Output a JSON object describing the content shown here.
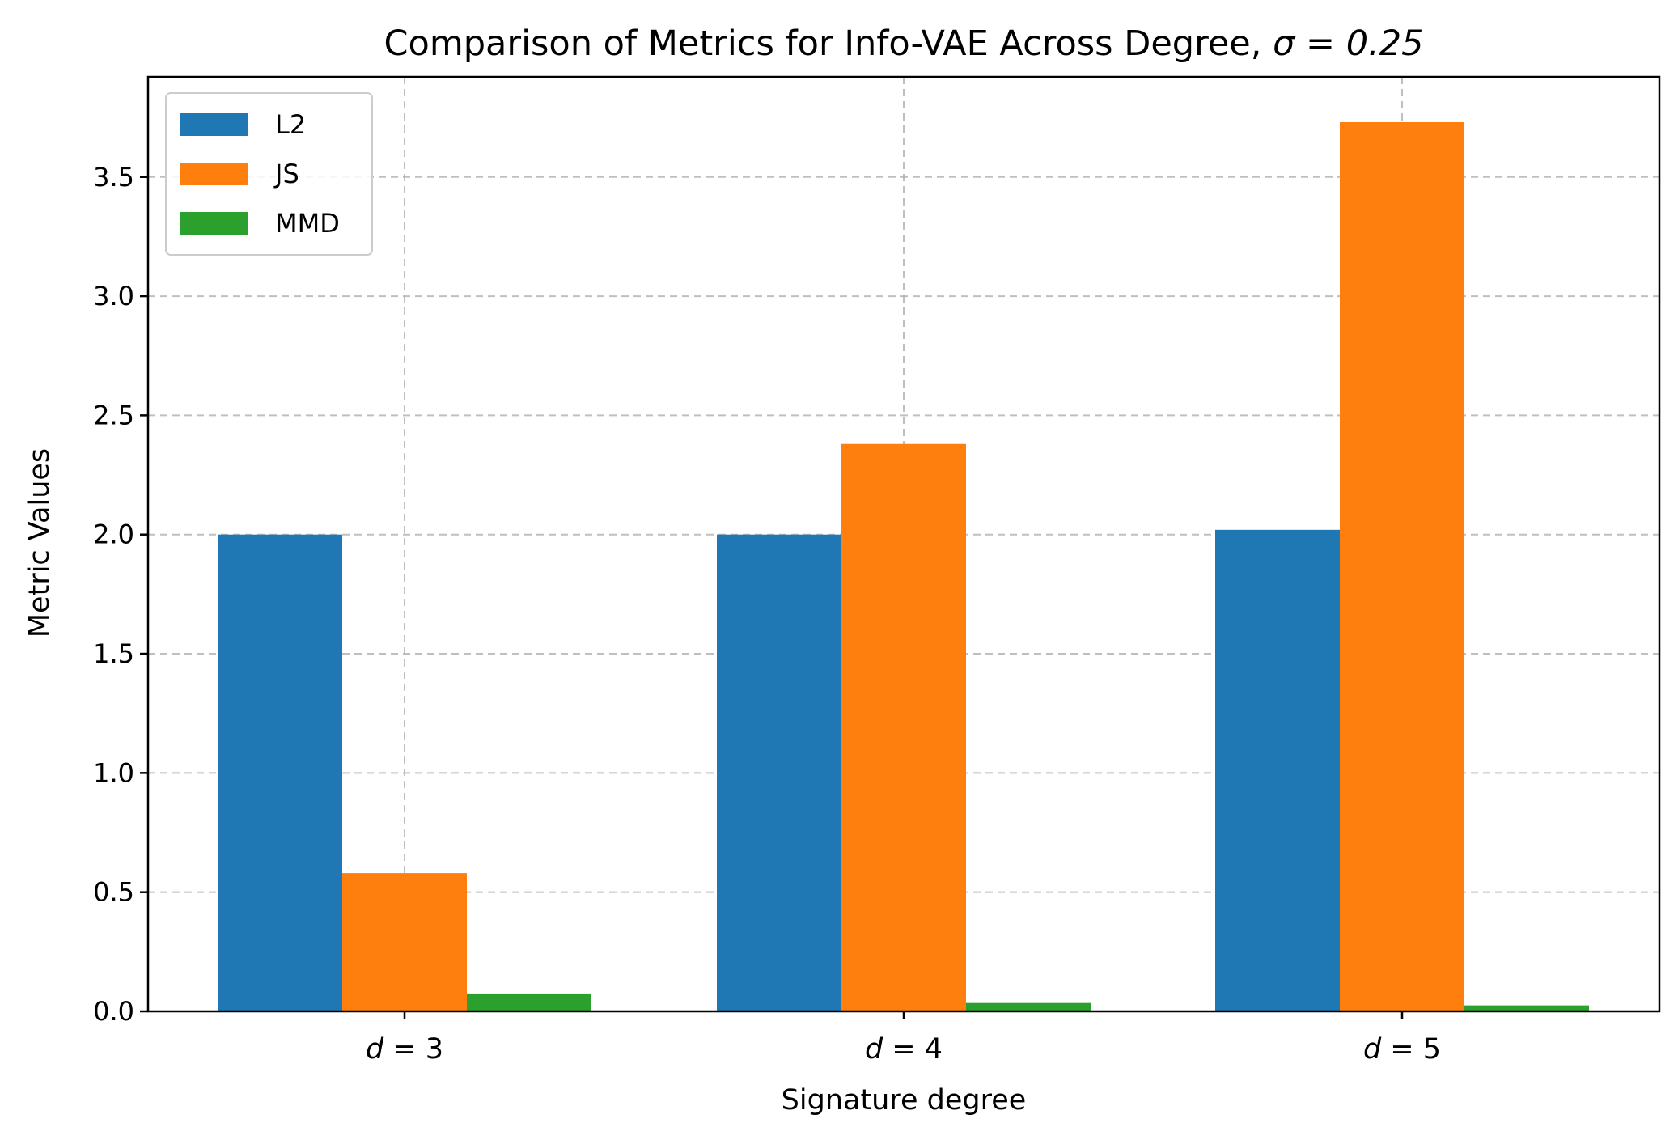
{
  "chart_data": {
    "type": "bar",
    "title": "Comparison of Metrics for Info-VAE Across Degree, σ = 0.25",
    "title_main": "Comparison of Metrics for Info-VAE Across Degree, ",
    "title_math": "σ = 0.25",
    "xlabel": "Signature degree",
    "ylabel": "Metric Values",
    "categories": [
      "d = 3",
      "d = 4",
      "d = 5"
    ],
    "category_var": "d",
    "category_nums": [
      "3",
      "4",
      "5"
    ],
    "ylim": [
      0,
      3.92
    ],
    "yticks": [
      "0.0",
      "0.5",
      "1.0",
      "1.5",
      "2.0",
      "2.5",
      "3.0",
      "3.5"
    ],
    "grid": true,
    "legend_position": "upper-left",
    "series": [
      {
        "name": "L2",
        "color": "#1f77b4",
        "values": [
          2.0,
          2.0,
          2.02
        ]
      },
      {
        "name": "JS",
        "color": "#ff7f0e",
        "values": [
          0.58,
          2.38,
          3.73
        ]
      },
      {
        "name": "MMD",
        "color": "#2ca02c",
        "values": [
          0.075,
          0.035,
          0.025
        ]
      }
    ]
  }
}
